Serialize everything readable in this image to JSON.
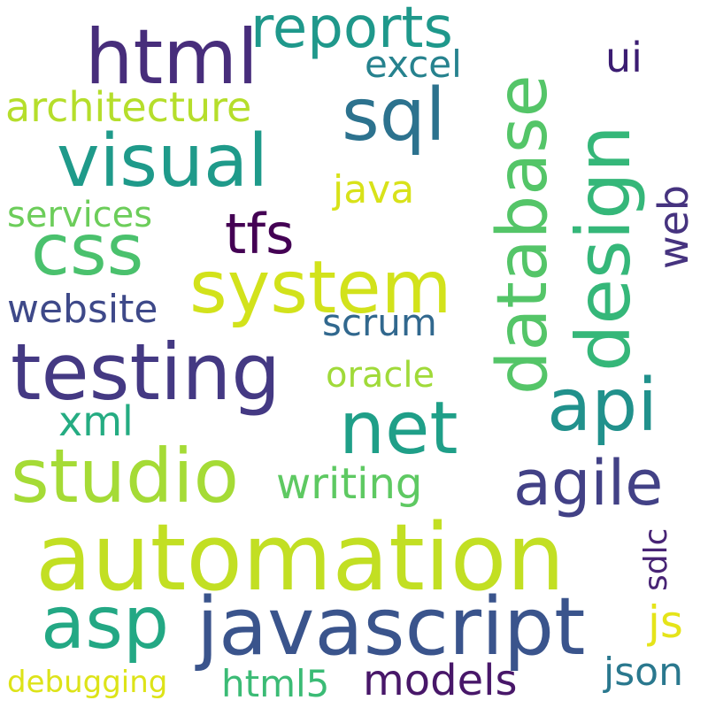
{
  "words": {
    "automation": {
      "text": "automation",
      "color": "#c2df23"
    },
    "javascript": {
      "text": "javascript",
      "color": "#3a548c"
    },
    "testing": {
      "text": "testing",
      "color": "#443983"
    },
    "studio": {
      "text": "studio",
      "color": "#a5db36"
    },
    "system": {
      "text": "system",
      "color": "#d2e21b"
    },
    "html": {
      "text": "html",
      "color": "#472d7b"
    },
    "visual": {
      "text": "visual",
      "color": "#1f9a8a"
    },
    "database": {
      "text": "database",
      "color": "#54c568"
    },
    "design": {
      "text": "design",
      "color": "#35b779"
    },
    "net": {
      "text": "net",
      "color": "#1f9f88"
    },
    "api": {
      "text": "api",
      "color": "#21918c"
    },
    "sql": {
      "text": "sql",
      "color": "#2c728e"
    },
    "asp": {
      "text": "asp",
      "color": "#23a884"
    },
    "css": {
      "text": "css",
      "color": "#4ac16d"
    },
    "reports": {
      "text": "reports",
      "color": "#1f988b"
    },
    "agile": {
      "text": "agile",
      "color": "#424186"
    },
    "tfs": {
      "text": "tfs",
      "color": "#440154"
    },
    "architecture": {
      "text": "architecture",
      "color": "#b5de2b"
    },
    "writing": {
      "text": "writing",
      "color": "#5ec962"
    },
    "models": {
      "text": "models",
      "color": "#481769"
    },
    "website": {
      "text": "website",
      "color": "#3e4989"
    },
    "web": {
      "text": "web",
      "color": "#46337f"
    },
    "html5": {
      "text": "html5",
      "color": "#3bbb75"
    },
    "services": {
      "text": "services",
      "color": "#6ccd5a"
    },
    "java": {
      "text": "java",
      "color": "#d8e219"
    },
    "oracle": {
      "text": "oracle",
      "color": "#a0da39"
    },
    "scrum": {
      "text": "scrum",
      "color": "#31688e"
    },
    "xml": {
      "text": "xml",
      "color": "#25ac82"
    },
    "excel": {
      "text": "excel",
      "color": "#26828e"
    },
    "json": {
      "text": "json",
      "color": "#2a788e"
    },
    "debugging": {
      "text": "debugging",
      "color": "#dde318"
    },
    "js": {
      "text": "js",
      "color": "#e5e419"
    },
    "ui": {
      "text": "ui",
      "color": "#3b1c72"
    },
    "sdlc": {
      "text": "sdlc",
      "color": "#482475"
    }
  }
}
